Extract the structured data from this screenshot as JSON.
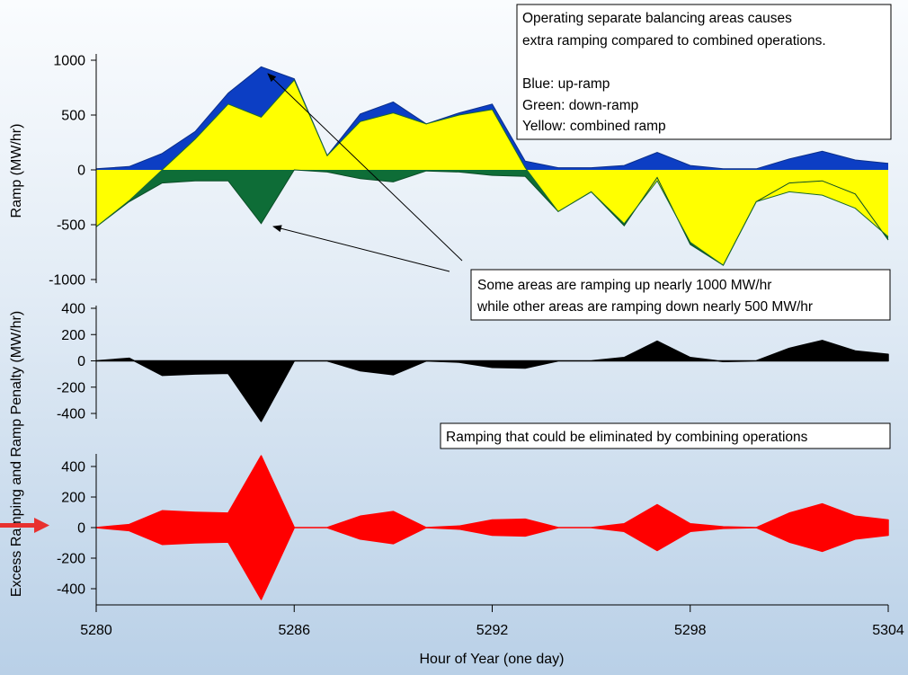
{
  "chart_data": [
    {
      "type": "area",
      "id": "ramp",
      "ylabel": "Ramp (MW/hr)",
      "ylim": [
        -1000,
        1000
      ],
      "yticks": [
        1000,
        500,
        0,
        -500,
        -1000
      ],
      "colors": {
        "up": "#0c3ec4",
        "down": "#0e6d37",
        "combined": "#ffff00"
      },
      "series": [
        {
          "name": "up-ramp",
          "values": [
            10,
            30,
            150,
            350,
            700,
            940,
            830,
            130,
            510,
            620,
            420,
            520,
            600,
            80,
            20,
            20,
            40,
            160,
            40,
            10,
            10,
            100,
            170,
            90,
            60
          ]
        },
        {
          "name": "down-ramp",
          "values": [
            -520,
            -290,
            -120,
            -100,
            -100,
            -490,
            0,
            -20,
            -80,
            -110,
            -10,
            -20,
            -50,
            -60,
            -380,
            -200,
            -510,
            -70,
            -680,
            -870,
            -290,
            -120,
            -100,
            -220,
            -640
          ]
        },
        {
          "name": "combined ramp",
          "values": [
            -520,
            -280,
            0,
            280,
            600,
            480,
            820,
            130,
            440,
            520,
            420,
            500,
            550,
            20,
            -380,
            -200,
            -490,
            -100,
            -660,
            -870,
            -290,
            -200,
            -230,
            -350,
            -610
          ]
        }
      ]
    },
    {
      "type": "area",
      "id": "penalty",
      "ylim": [
        -400,
        400
      ],
      "yticks": [
        400,
        200,
        0,
        -200,
        -400
      ],
      "colors": {
        "fill": "#000000"
      },
      "series": [
        {
          "name": "ramp penalty",
          "values": [
            0,
            20,
            -110,
            -100,
            -95,
            -460,
            0,
            0,
            -75,
            -105,
            0,
            -10,
            -50,
            -55,
            0,
            0,
            25,
            150,
            25,
            -5,
            0,
            95,
            155,
            75,
            50
          ]
        }
      ]
    },
    {
      "type": "area",
      "id": "excess",
      "ylim": [
        -400,
        400
      ],
      "yticks": [
        400,
        200,
        0,
        -200,
        -400
      ],
      "colors": {
        "fill": "#ff0000"
      },
      "series": [
        {
          "name": "excess ramping",
          "values": [
            0,
            20,
            110,
            100,
            95,
            470,
            0,
            0,
            75,
            105,
            0,
            10,
            50,
            55,
            0,
            0,
            25,
            150,
            25,
            5,
            0,
            95,
            155,
            75,
            50
          ]
        }
      ]
    }
  ],
  "x_axis": {
    "label": "Hour of Year (one day)",
    "range": [
      5280,
      5304
    ],
    "ticks": [
      5280,
      5286,
      5292,
      5298,
      5304
    ]
  },
  "shared_ylabel": "Excess Ramping and Ramp Penalty (MW/hr)",
  "annotations": {
    "legend_box": {
      "lines": [
        "Operating separate balancing areas causes",
        "extra ramping compared to combined operations.",
        "",
        "Blue: up-ramp",
        "Green: down-ramp",
        "Yellow: combined ramp"
      ]
    },
    "ramping_box": {
      "lines": [
        "Some areas are ramping up nearly 1000 MW/hr",
        "while other areas are ramping down nearly 500 MW/hr"
      ]
    },
    "eliminated_box": {
      "lines": [
        "Ramping that could be eliminated by combining operations"
      ]
    }
  },
  "marker": {
    "icon": "arrow-right-icon",
    "color": "#e8312f"
  }
}
